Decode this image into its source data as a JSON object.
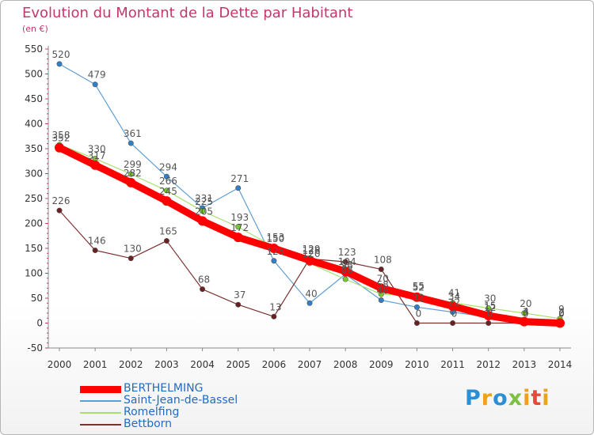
{
  "title": "Evolution du Montant de la Dette par Habitant",
  "subtitle": "(en €)",
  "logo_text": "Proxiti",
  "chart_data": {
    "type": "line",
    "title": "Evolution du Montant de la Dette par Habitant",
    "ylabel": "(en €)",
    "x": [
      "2000",
      "2001",
      "2002",
      "2003",
      "2004",
      "2005",
      "2006",
      "2007",
      "2008",
      "2009",
      "2010",
      "2011",
      "2012",
      "2013",
      "2014"
    ],
    "ylim": [
      -50,
      550
    ],
    "yticks": [
      -50,
      0,
      50,
      100,
      150,
      200,
      250,
      300,
      350,
      400,
      450,
      500,
      550
    ],
    "grid": false,
    "legend": "bottom-left",
    "series": [
      {
        "name": "BERTHELMING",
        "color": "#ff0000",
        "marker": "#ff0000",
        "width": 9,
        "values": [
          352,
          317,
          282,
          245,
          205,
          172,
          150,
          126,
          104,
          70,
          52,
          34,
          15,
          3,
          0
        ],
        "labels": [
          "352",
          "317",
          "282",
          "245",
          "205",
          "172",
          "150",
          "126",
          "104",
          "70",
          "52",
          "34",
          "15",
          "3",
          "0"
        ]
      },
      {
        "name": "Saint-Jean-de-Bassel",
        "color": "#5f9ed3",
        "marker": "#2f7fc9",
        "width": 1.2,
        "values": [
          520,
          479,
          361,
          294,
          231,
          271,
          125,
          40,
          98,
          46,
          32,
          22,
          12,
          4,
          2
        ],
        "labels": [
          "520",
          "479",
          "361",
          "294",
          "231",
          "271",
          "125",
          "40",
          "98",
          "46",
          "32",
          "22",
          "12",
          "4",
          "2"
        ]
      },
      {
        "name": "Romelfing",
        "color": "#a8e070",
        "marker": "#75cc2e",
        "width": 1.2,
        "values": [
          358,
          330,
          299,
          266,
          225,
          193,
          153,
          120,
          88,
          58,
          55,
          41,
          30,
          20,
          9
        ],
        "labels": [
          "358",
          "330",
          "299",
          "266",
          "225",
          "193",
          "153",
          "120",
          "88",
          "58",
          "55",
          "41",
          "30",
          "20",
          "9"
        ]
      },
      {
        "name": "Bettborn",
        "color": "#7a3230",
        "marker": "#6a2020",
        "width": 1.2,
        "values": [
          226,
          146,
          130,
          165,
          68,
          37,
          13,
          129,
          123,
          108,
          0,
          0,
          0,
          0,
          0
        ],
        "labels": [
          "226",
          "146",
          "130",
          "165",
          "68",
          "37",
          "13",
          "129",
          "123",
          "108",
          "0",
          "0",
          "0",
          "0",
          "0"
        ]
      }
    ]
  }
}
